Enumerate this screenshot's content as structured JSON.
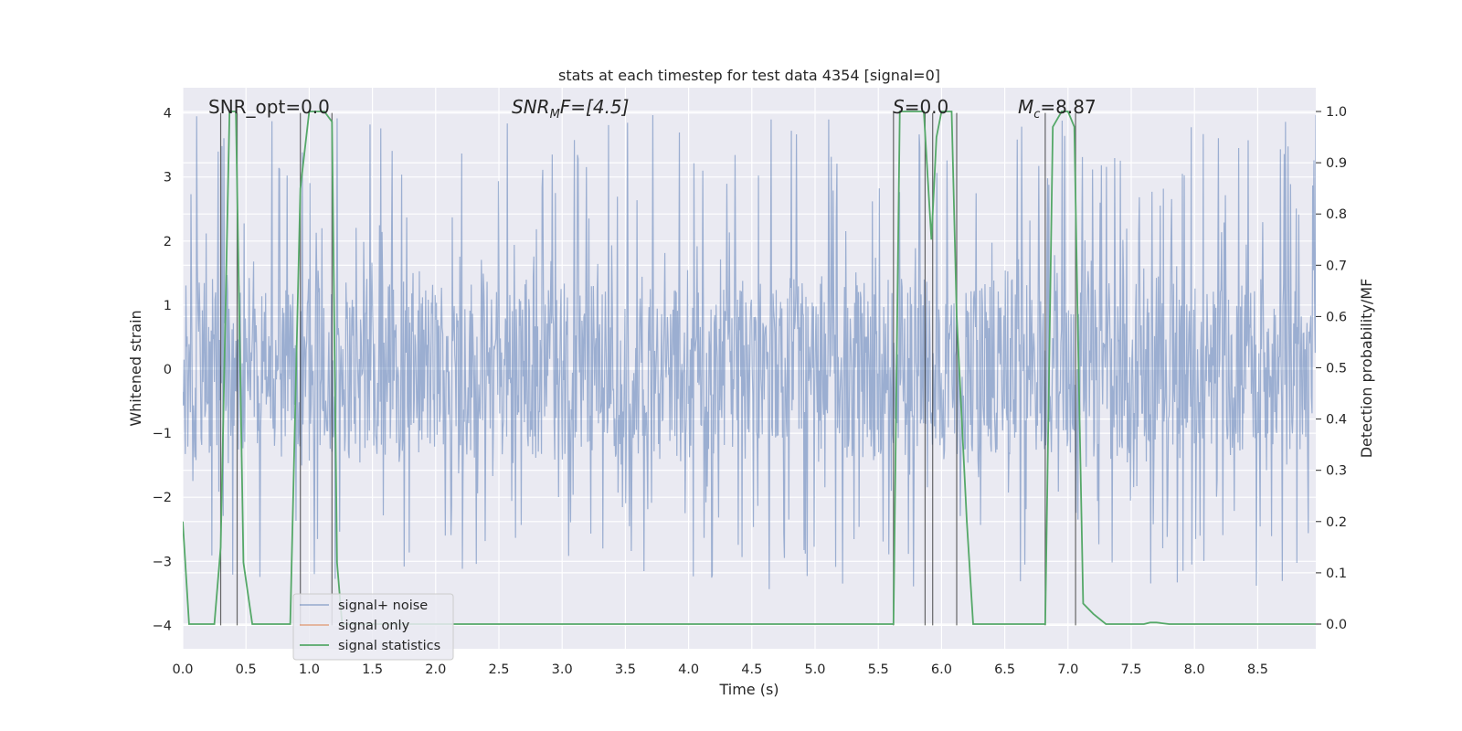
{
  "chart_data": {
    "type": "line",
    "title": "stats at each timestep for test data 4354 [signal=0]",
    "xlabel": "Time (s)",
    "ylabel": "Whitened strain",
    "y2label": "Detection probability/MF",
    "xlim": [
      0,
      9.0
    ],
    "ylim": [
      -4.4,
      4.4
    ],
    "y2lim": [
      -0.05,
      1.05
    ],
    "grid": true,
    "x_ticks": [
      0.0,
      0.5,
      1.0,
      1.5,
      2.0,
      2.5,
      3.0,
      3.5,
      4.0,
      4.5,
      5.0,
      5.5,
      6.0,
      6.5,
      7.0,
      7.5,
      8.0,
      8.5
    ],
    "x_tick_labels": [
      "0.0",
      "0.5",
      "1.0",
      "1.5",
      "2.0",
      "2.5",
      "3.0",
      "3.5",
      "4.0",
      "4.5",
      "5.0",
      "5.5",
      "6.0",
      "6.5",
      "7.0",
      "7.5",
      "8.0",
      "8.5"
    ],
    "y_ticks": [
      4,
      3,
      2,
      1,
      0,
      -1,
      -2,
      -3,
      -4
    ],
    "y_tick_labels": [
      "4",
      "3",
      "2",
      "1",
      "0",
      "−1",
      "−2",
      "−3",
      "−4"
    ],
    "y2_ticks": [
      1.0,
      0.9,
      0.8,
      0.7,
      0.6,
      0.5,
      0.4,
      0.3,
      0.2,
      0.1,
      0.0
    ],
    "y2_tick_labels": [
      "1.0",
      "0.9",
      "0.8",
      "0.7",
      "0.6",
      "0.5",
      "0.4",
      "0.3",
      "0.2",
      "0.1",
      "0.0"
    ],
    "series": [
      {
        "name": "signal+ noise",
        "color": "#4c72b0",
        "kind": "noise",
        "duration": 9.0,
        "n_samples": 1800,
        "band": 1.6,
        "spike_max": 4.0,
        "spike_min": -3.5
      },
      {
        "name": "signal only",
        "color": "#dd8452",
        "kind": "line",
        "x": [],
        "y": []
      },
      {
        "name": "signal statistics",
        "color": "#55a868",
        "axis": "right",
        "x": [
          0.0,
          0.05,
          0.1,
          0.25,
          0.3,
          0.37,
          0.42,
          0.48,
          0.55,
          0.85,
          0.93,
          1.0,
          1.05,
          1.12,
          1.18,
          1.22,
          1.26,
          1.3,
          1.5,
          5.5,
          5.62,
          5.67,
          5.72,
          5.86,
          5.92,
          5.96,
          6.0,
          6.04,
          6.08,
          6.12,
          6.2,
          6.25,
          6.5,
          6.8,
          6.82,
          6.88,
          6.95,
          7.0,
          7.05,
          7.08,
          7.12,
          7.2,
          7.3,
          7.6,
          7.65,
          7.7,
          7.8,
          9.0
        ],
        "y": [
          0.2,
          0.0,
          0.0,
          0.0,
          0.15,
          1.0,
          1.0,
          0.12,
          0.0,
          0.0,
          0.85,
          1.0,
          1.0,
          1.0,
          0.98,
          0.12,
          0.0,
          0.0,
          0.0,
          0.0,
          0.0,
          1.0,
          1.0,
          1.0,
          0.75,
          0.95,
          1.0,
          1.0,
          1.0,
          0.6,
          0.2,
          0.0,
          0.0,
          0.0,
          0.0,
          0.97,
          1.0,
          1.0,
          0.97,
          0.55,
          0.04,
          0.02,
          0.0,
          0.0,
          0.003,
          0.003,
          0.0,
          0.0
        ]
      }
    ],
    "vlines": [
      0.3,
      0.43,
      0.93,
      1.18,
      5.62,
      5.87,
      5.93,
      6.12,
      6.82,
      7.06
    ],
    "legend": [
      "signal+ noise",
      "signal only",
      "signal statistics"
    ],
    "legend_location": "lower-left"
  },
  "annotations": {
    "snr_opt": "SNR_opt=0.0",
    "snr_mf_base": "SNR",
    "snr_mf_sub": "M",
    "snr_mf_rest": "F=[4.5]",
    "s_value": "S=0.0",
    "mc_base": "M",
    "mc_sub": "c",
    "mc_rest": "=8.87"
  }
}
